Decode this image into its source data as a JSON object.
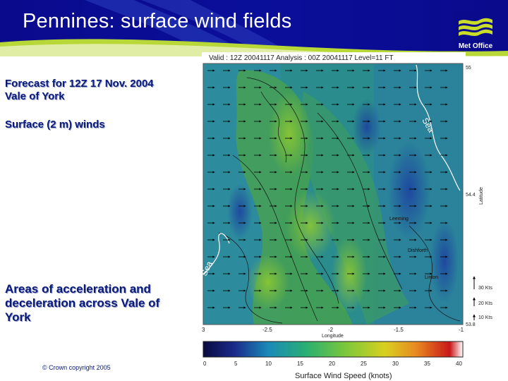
{
  "slide": {
    "title": "Pennines: surface wind fields",
    "logo_text": "Met Office",
    "forecast_line1": "Forecast for 12Z 17 Nov. 2004",
    "forecast_line2": "Vale of York",
    "surface_line": "Surface (2 m) winds",
    "areas_line1": "Areas of acceleration and",
    "areas_line2": "deceleration across Vale of",
    "areas_line3": "York",
    "copyright": "© Crown copyright 2005"
  },
  "map": {
    "header": "Valid : 12Z 20041117 Analysis : 00Z 20041117 Level=11 FT",
    "lon_ticks": [
      "3",
      "-2.5",
      "-2",
      "-1.5",
      "-1"
    ],
    "lon_label": "Longitude",
    "lat_ticks": [
      "55",
      "54.4",
      "53.8"
    ],
    "lat_label": "Latitude",
    "sea_labels": [
      "Sea",
      "Sea"
    ],
    "place_labels": [
      "Leeming",
      "Dishforth",
      "Linton"
    ],
    "vector_keys": [
      "30 Kts",
      "20 Kts",
      "10 Kts"
    ],
    "colorbar_ticks": [
      "0",
      "5",
      "10",
      "15",
      "20",
      "25",
      "30",
      "35",
      "40"
    ],
    "colorbar_label": "Surface Wind Speed (knots)",
    "colors": {
      "sea": "#1f72b8",
      "land": "#4aa34a",
      "high": "#8cc832"
    }
  }
}
